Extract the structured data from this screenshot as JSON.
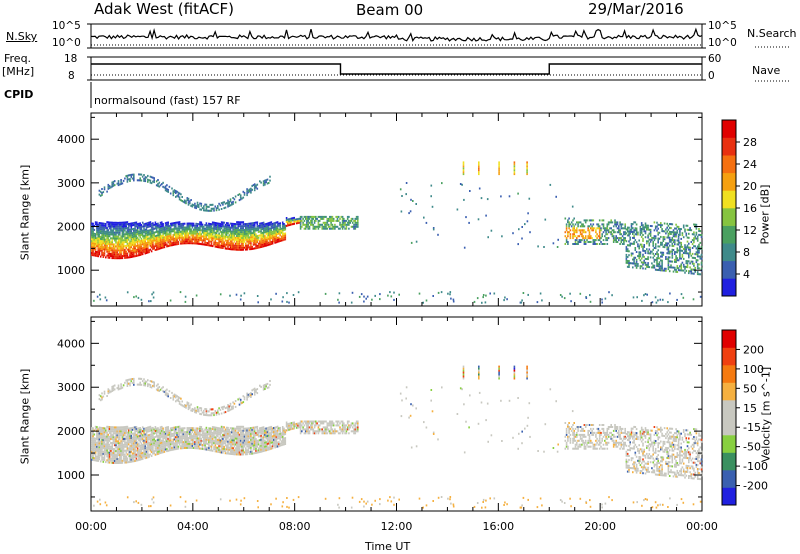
{
  "header": {
    "title": "Adak West (fitACF)",
    "beam": "Beam 00",
    "date": "29/Mar/2016"
  },
  "params": {
    "nsky_label": "N.Sky",
    "nsky_ticks": [
      "10^5",
      "10^0"
    ],
    "nsearch_label": "N.Search",
    "freq_label": "Freq.",
    "freq_unit": "[MHz]",
    "freq_ticks": [
      "18",
      "8"
    ],
    "nave_label": "Nave",
    "nave_ticks": [
      "60",
      "0"
    ],
    "cpid_label": "CPID",
    "cpid_value": "normalsound (fast) 157 RF"
  },
  "x_axis": {
    "label": "Time UT",
    "ticks": [
      "00:00",
      "04:00",
      "08:00",
      "12:00",
      "16:00",
      "20:00",
      "00:00"
    ]
  },
  "colors": {
    "power_scale": [
      "#2020e0",
      "#3a5fb0",
      "#3f8a8a",
      "#4aa060",
      "#86c440",
      "#f0e020",
      "#f5a010",
      "#f57010",
      "#e83010",
      "#e00000"
    ],
    "velocity_scale": [
      "#e00000",
      "#f04010",
      "#f57a10",
      "#f5b040",
      "#c8c8c0",
      "#c8c8c0",
      "#88d040",
      "#3a9060",
      "#3a60b0",
      "#2020e0"
    ]
  },
  "chart_data": [
    {
      "type": "heatmap",
      "name": "power-panel",
      "ylabel": "Slant Range [km]",
      "xlabel": "",
      "x_range_hours": [
        0,
        24
      ],
      "ylim": [
        180,
        4600
      ],
      "y_ticks": [
        1000,
        2000,
        3000,
        4000
      ],
      "colorbar": {
        "label": "Power [dB]",
        "range": [
          0,
          32
        ],
        "ticks": [
          4,
          8,
          12,
          16,
          20,
          24,
          28
        ]
      },
      "features": [
        {
          "band": "main",
          "hours": [
            0,
            8.2
          ],
          "range_km": [
            1200,
            2100
          ],
          "peak_db": 30
        },
        {
          "band": "upper",
          "hours": [
            0,
            7
          ],
          "range_km": [
            2500,
            3300
          ],
          "peak_db": 8
        },
        {
          "band": "post-8h",
          "hours": [
            8.2,
            10.5
          ],
          "range_km": [
            1900,
            2400
          ],
          "peak_db": 14
        },
        {
          "band": "evening",
          "hours": [
            18.5,
            24
          ],
          "range_km": [
            900,
            2400
          ],
          "peak_db": 22
        }
      ]
    },
    {
      "type": "heatmap",
      "name": "velocity-panel",
      "ylabel": "Slant Range [km]",
      "xlabel": "Time UT",
      "x_range_hours": [
        0,
        24
      ],
      "ylim": [
        180,
        4600
      ],
      "y_ticks": [
        1000,
        2000,
        3000,
        4000
      ],
      "colorbar": {
        "label": "Velocity [m s^-1]",
        "range": [
          -250,
          250
        ],
        "ticks": [
          200,
          100,
          50,
          15,
          -15,
          -50,
          -100,
          -200
        ]
      }
    }
  ]
}
